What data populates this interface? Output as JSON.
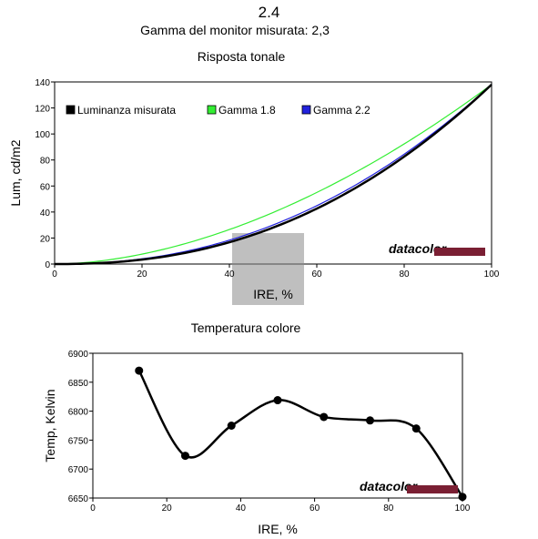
{
  "header": {
    "title": "2.4",
    "subtitle": "Gamma del monitor misurata: 2,3"
  },
  "chart_data": [
    {
      "type": "line",
      "title": "Risposta tonale",
      "xlabel": "IRE, %",
      "ylabel": "Lum, cd/m2",
      "xlim": [
        0,
        100
      ],
      "ylim": [
        0,
        140
      ],
      "xticks": [
        0,
        20,
        40,
        60,
        80,
        100
      ],
      "yticks": [
        0,
        20,
        40,
        60,
        80,
        100,
        120,
        140
      ],
      "grid": false,
      "legend": "top-left",
      "watermark": "datacolor",
      "series": [
        {
          "name": "Luminanza misurata",
          "color": "#000000",
          "kind": "gamma",
          "gamma": 2.3,
          "ymax": 138
        },
        {
          "name": "Gamma 1.8",
          "color": "#33ee33",
          "kind": "gamma",
          "gamma": 1.8,
          "ymax": 138
        },
        {
          "name": "Gamma 2.2",
          "color": "#2222dd",
          "kind": "gamma",
          "gamma": 2.2,
          "ymax": 138
        }
      ]
    },
    {
      "type": "line",
      "title": "Temperatura colore",
      "xlabel": "IRE, %",
      "ylabel": "Temp, Kelvin",
      "xlim": [
        0,
        100
      ],
      "ylim": [
        6650,
        6900
      ],
      "xticks": [
        0,
        20,
        40,
        60,
        80,
        100
      ],
      "yticks": [
        6650,
        6700,
        6750,
        6800,
        6850,
        6900
      ],
      "grid": false,
      "watermark": "datacolor",
      "series": [
        {
          "color": "#000000",
          "kind": "points",
          "x": [
            12.5,
            25,
            37.5,
            50,
            62.5,
            75,
            87.5,
            100
          ],
          "y": [
            6870,
            6723,
            6775,
            6819,
            6790,
            6784,
            6770,
            6652
          ]
        }
      ]
    }
  ]
}
